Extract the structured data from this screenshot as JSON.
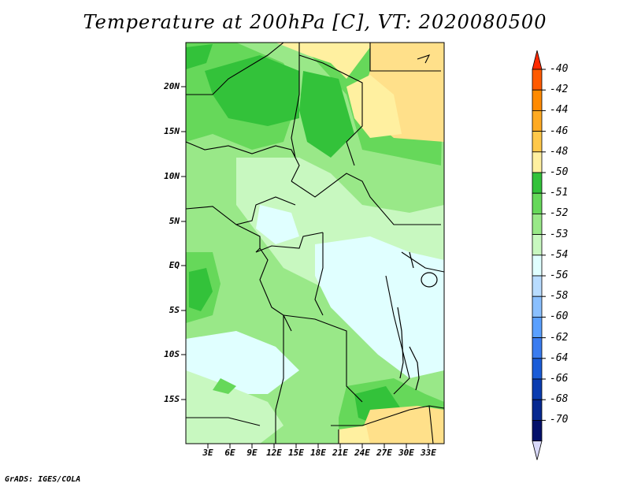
{
  "title": "Temperature at 200hPa [C], VT: 2020080500",
  "credit": "GrADS: IGES/COLA",
  "lat_labels": [
    "20N",
    "15N",
    "10N",
    "5N",
    "EQ",
    "5S",
    "10S",
    "15S"
  ],
  "lon_labels": [
    "3E",
    "6E",
    "9E",
    "12E",
    "15E",
    "18E",
    "21E",
    "24E",
    "27E",
    "30E",
    "33E"
  ],
  "colorbar": {
    "labels": [
      "-40",
      "-42",
      "-44",
      "-46",
      "-48",
      "-50",
      "-51",
      "-52",
      "-53",
      "-54",
      "-56",
      "-58",
      "-60",
      "-62",
      "-64",
      "-66",
      "-68",
      "-70"
    ],
    "colors": [
      "#ff2a00",
      "#ff5a00",
      "#ff8a00",
      "#ffaa22",
      "#ffc84a",
      "#fff0a0",
      "#33c23a",
      "#66d85a",
      "#99e888",
      "#c8f8c0",
      "#e0ffff",
      "#b8dcff",
      "#8ac0ff",
      "#5aa0ff",
      "#3a7cf0",
      "#1a5cd8",
      "#0a3cb0",
      "#062890",
      "#03106a",
      "#d8d8f8"
    ]
  },
  "palette": {
    "pale_yellow": "#fff0a0",
    "light_orange": "#ffe08a",
    "green_dark": "#33c23a",
    "green_mid": "#66d85a",
    "green_light": "#99e888",
    "green_pale": "#c8f8c0",
    "cyan_pale": "#e0ffff"
  }
}
